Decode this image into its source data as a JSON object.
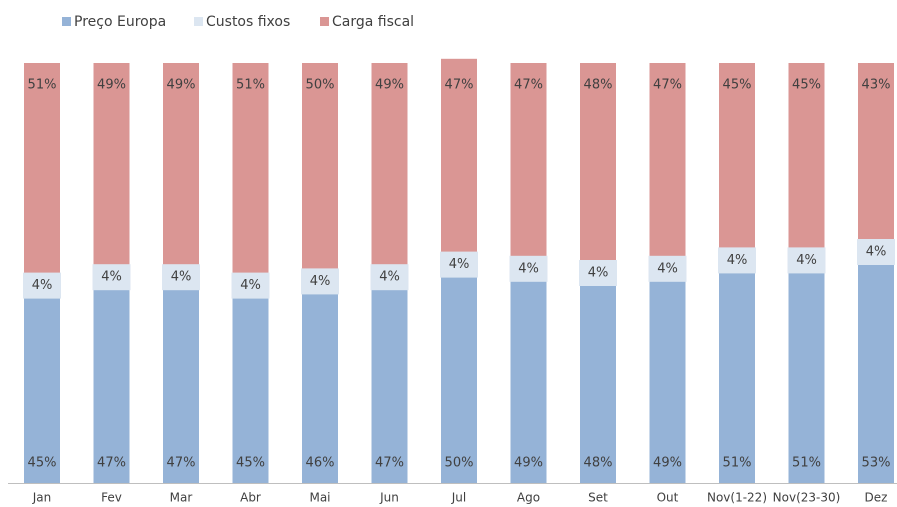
{
  "chart_data": {
    "type": "stacked-bar",
    "categories": [
      "Jan",
      "Fev",
      "Mar",
      "Abr",
      "Mai",
      "Jun",
      "Jul",
      "Ago",
      "Set",
      "Out",
      "Nov(1-22)",
      "Nov(23-30)",
      "Dez"
    ],
    "series": [
      {
        "name": "Preço Europa",
        "color": "#95b3d7",
        "values": [
          45,
          47,
          47,
          45,
          46,
          47,
          50,
          49,
          48,
          49,
          51,
          51,
          53
        ],
        "value_labels": [
          "45%",
          "47%",
          "47%",
          "45%",
          "46%",
          "47%",
          "50%",
          "49%",
          "48%",
          "49%",
          "51%",
          "51%",
          "53%"
        ]
      },
      {
        "name": "Custos fixos",
        "color": "#dce6f1",
        "values": [
          4,
          4,
          4,
          4,
          4,
          4,
          4,
          4,
          4,
          4,
          4,
          4,
          4
        ],
        "value_labels": [
          "4%",
          "4%",
          "4%",
          "4%",
          "4%",
          "4%",
          "4%",
          "4%",
          "4%",
          "4%",
          "4%",
          "4%",
          "4%"
        ]
      },
      {
        "name": "Carga fiscal",
        "color": "#da9694",
        "values": [
          51,
          49,
          49,
          51,
          50,
          49,
          47,
          47,
          48,
          47,
          45,
          45,
          43
        ],
        "value_labels": [
          "51%",
          "49%",
          "49%",
          "51%",
          "50%",
          "49%",
          "47%",
          "47%",
          "48%",
          "47%",
          "45%",
          "45%",
          "43%"
        ]
      }
    ]
  }
}
